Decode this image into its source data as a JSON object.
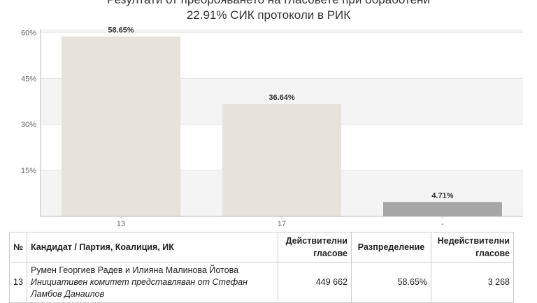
{
  "header": {
    "title_line1": "Резултати от преброяването на гласовете при обработени",
    "title_line2": "22.91% СИК протоколи в РИК"
  },
  "chart_data": {
    "type": "bar",
    "categories": [
      "13",
      "17",
      "-"
    ],
    "values": [
      58.65,
      36.64,
      4.71
    ],
    "data_labels": [
      "58.65%",
      "36.64%",
      "4.71%"
    ],
    "colors": [
      "#e6e2dc",
      "#e6e2dc",
      "#a6a6a6"
    ],
    "yticks": [
      "15%",
      "30%",
      "45%",
      "60%"
    ],
    "ylim": [
      0,
      61
    ],
    "grid": true
  },
  "table": {
    "headers": {
      "no": "№",
      "name": "Кандидат / Партия, Коалиция, ИК",
      "valid": "Действителни гласове",
      "dist": "Разпределение",
      "invalid": "Недействителни гласове"
    },
    "rows": [
      {
        "no": "13",
        "name": "Румен Георгиев Радев и Илияна Малинова Йотова",
        "sub": "Инициативен комитет представляван от Стефан Ламбов Данаилов",
        "valid": "449 662",
        "dist": "58.65%",
        "invalid": "3 268"
      }
    ]
  }
}
